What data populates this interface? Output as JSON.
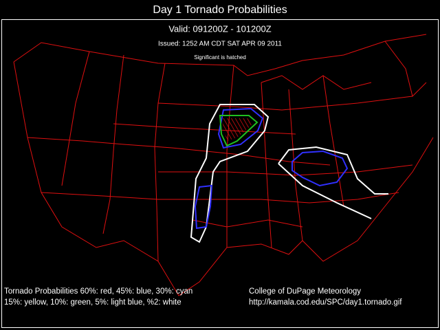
{
  "header": {
    "title": "Day 1 Tornado Probabilities",
    "valid": "Valid: 091200Z - 101200Z",
    "issued": "Issued: 1252 AM CDT SAT APR 09 2011",
    "note": "Significant is hatched"
  },
  "footer": {
    "legend": [
      "Tornado Probabilities 60%: red, 45%: blue, 30%: cyan",
      "15%: yellow, 10%: green, 5%: light blue, %2: white"
    ],
    "credit": [
      "College of DuPage Meteorology",
      "http://kamala.cod.edu/SPC/day1.tornado.gif"
    ]
  }
}
